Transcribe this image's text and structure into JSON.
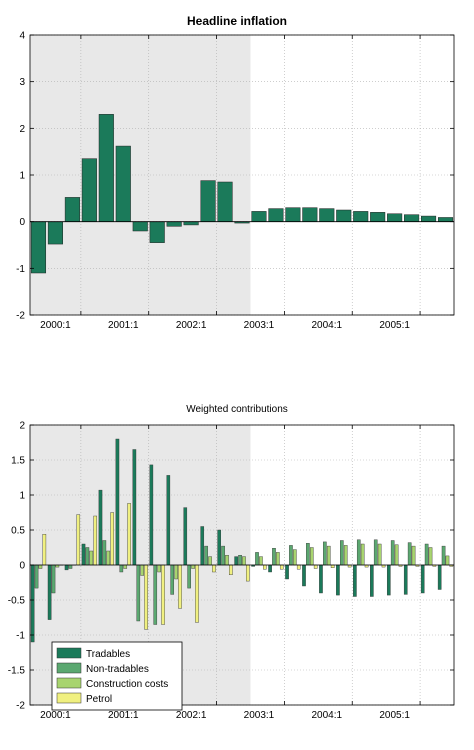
{
  "chart_data": [
    {
      "type": "bar",
      "title": "Headline inflation",
      "xlabel": "",
      "ylabel": "",
      "ylim": [
        -2,
        4
      ],
      "yticks": [
        "-2",
        "-1",
        "0",
        "1",
        "2",
        "3",
        "4"
      ],
      "xtick_labels": [
        "2000:1",
        "2001:1",
        "2002:1",
        "2003:1",
        "2004:1",
        "2005:1"
      ],
      "shaded_region": "2000:1 to 2002:4 (history)",
      "grid": true,
      "bar_color": "#1b7a5a",
      "shade_color": "#e8e8e8",
      "categories": [
        "1999:4",
        "2000:1",
        "2000:2",
        "2000:3",
        "2000:4",
        "2001:1",
        "2001:2",
        "2001:3",
        "2001:4",
        "2002:1",
        "2002:2",
        "2002:3",
        "2002:4",
        "2003:1",
        "2003:2",
        "2003:3",
        "2003:4",
        "2004:1",
        "2004:2",
        "2004:3",
        "2004:4",
        "2005:1",
        "2005:2",
        "2005:3",
        "2005:4"
      ],
      "values": [
        -1.1,
        -0.48,
        0.52,
        1.35,
        2.3,
        1.62,
        -0.2,
        -0.45,
        -0.1,
        -0.07,
        0.88,
        0.85,
        -0.03,
        0.22,
        0.28,
        0.3,
        0.3,
        0.28,
        0.25,
        0.22,
        0.2,
        0.17,
        0.15,
        0.12,
        0.09
      ]
    },
    {
      "type": "bar",
      "title": "Weighted contributions",
      "xlabel": "",
      "ylabel": "",
      "ylim": [
        -2,
        2
      ],
      "yticks": [
        "-2",
        "-1.5",
        "-1",
        "-0.5",
        "0",
        "0.5",
        "1",
        "1.5",
        "2"
      ],
      "xtick_labels": [
        "2000:1",
        "2001:1",
        "2002:1",
        "2003:1",
        "2004:1",
        "2005:1"
      ],
      "grid": true,
      "legend": "bottom-left",
      "categories": [
        "1999:4",
        "2000:1",
        "2000:2",
        "2000:3",
        "2000:4",
        "2001:1",
        "2001:2",
        "2001:3",
        "2001:4",
        "2002:1",
        "2002:2",
        "2002:3",
        "2002:4",
        "2003:1",
        "2003:2",
        "2003:3",
        "2003:4",
        "2004:1",
        "2004:2",
        "2004:3",
        "2004:4",
        "2005:1",
        "2005:2",
        "2005:3",
        "2005:4"
      ],
      "series": [
        {
          "name": "Tradables",
          "color": "#1b7a5a",
          "values": [
            -1.1,
            -0.78,
            -0.07,
            0.3,
            1.07,
            1.8,
            1.65,
            1.43,
            1.28,
            0.82,
            0.55,
            0.5,
            0.12,
            -0.02,
            -0.1,
            -0.2,
            -0.3,
            -0.4,
            -0.43,
            -0.45,
            -0.45,
            -0.43,
            -0.42,
            -0.4,
            -0.35
          ]
        },
        {
          "name": "Non-tradables",
          "color": "#5ba870",
          "values": [
            -0.33,
            -0.4,
            -0.05,
            0.25,
            0.35,
            -0.1,
            -0.8,
            -0.85,
            -0.42,
            -0.33,
            0.27,
            0.27,
            0.14,
            0.18,
            0.24,
            0.28,
            0.31,
            0.33,
            0.35,
            0.36,
            0.36,
            0.35,
            0.32,
            0.3,
            0.27
          ]
        },
        {
          "name": "Construction costs",
          "color": "#a8d46f",
          "values": [
            -0.05,
            -0.03,
            0.0,
            0.2,
            0.2,
            -0.05,
            -0.15,
            -0.1,
            -0.2,
            -0.05,
            0.12,
            0.14,
            0.12,
            0.12,
            0.18,
            0.22,
            0.25,
            0.27,
            0.28,
            0.3,
            0.3,
            0.29,
            0.27,
            0.25,
            0.13
          ]
        },
        {
          "name": "Petrol",
          "color": "#f0f080",
          "values": [
            0.44,
            0.0,
            0.72,
            0.7,
            0.75,
            0.88,
            -0.92,
            -0.85,
            -0.62,
            -0.82,
            -0.1,
            -0.14,
            -0.23,
            -0.06,
            -0.06,
            -0.06,
            -0.05,
            -0.04,
            -0.03,
            -0.03,
            -0.03,
            -0.02,
            -0.02,
            -0.02,
            -0.02
          ]
        }
      ]
    }
  ]
}
